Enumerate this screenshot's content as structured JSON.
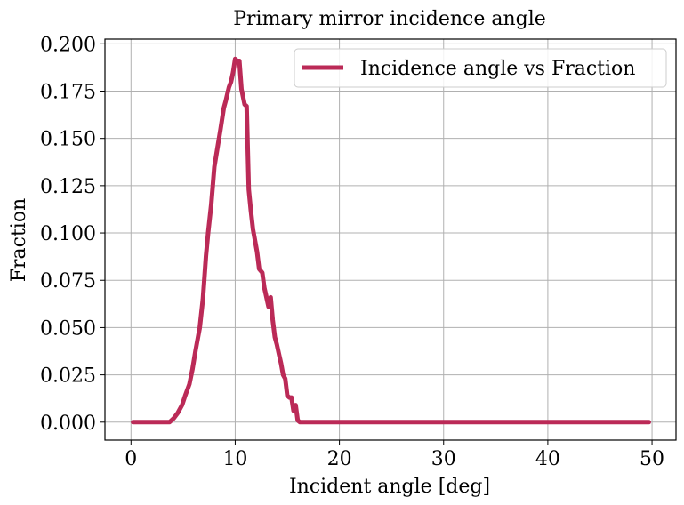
{
  "chart_data": {
    "type": "line",
    "title": "Primary mirror incidence angle",
    "xlabel": "Incident angle [deg]",
    "ylabel": "Fraction",
    "xlim": [
      -2.5,
      52.3
    ],
    "ylim": [
      -0.0095,
      0.2025
    ],
    "xticks": [
      0,
      10,
      20,
      30,
      40,
      50
    ],
    "xtick_labels": [
      "0",
      "10",
      "20",
      "30",
      "40",
      "50"
    ],
    "yticks": [
      0.0,
      0.025,
      0.05,
      0.075,
      0.1,
      0.125,
      0.15,
      0.175,
      0.2
    ],
    "ytick_labels": [
      "0.000",
      "0.025",
      "0.050",
      "0.075",
      "0.100",
      "0.125",
      "0.150",
      "0.175",
      "0.200"
    ],
    "grid": true,
    "legend_position": "top-right",
    "series": [
      {
        "name": "Incidence angle vs Fraction",
        "color": "#bb2a57",
        "x": [
          0.2,
          3.7,
          4.1,
          4.5,
          4.9,
          5.2,
          5.6,
          5.9,
          6.2,
          6.6,
          6.9,
          7.2,
          7.4,
          7.7,
          8.0,
          8.3,
          8.6,
          8.9,
          9.1,
          9.4,
          9.6,
          9.8,
          10.0,
          10.2,
          10.4,
          10.6,
          10.9,
          11.1,
          11.3,
          11.5,
          11.7,
          11.9,
          12.1,
          12.3,
          12.6,
          12.8,
          13.0,
          13.2,
          13.4,
          13.6,
          13.8,
          14.0,
          14.2,
          14.4,
          14.6,
          14.8,
          15.0,
          15.2,
          15.4,
          15.6,
          15.8,
          16.0,
          16.2,
          16.4,
          20.0,
          30.0,
          40.0,
          49.7
        ],
        "y": [
          0.0,
          0.0,
          0.002,
          0.005,
          0.009,
          0.014,
          0.02,
          0.028,
          0.038,
          0.05,
          0.065,
          0.088,
          0.1,
          0.115,
          0.135,
          0.145,
          0.155,
          0.166,
          0.17,
          0.177,
          0.18,
          0.185,
          0.192,
          0.191,
          0.191,
          0.176,
          0.168,
          0.167,
          0.123,
          0.112,
          0.102,
          0.096,
          0.09,
          0.081,
          0.079,
          0.071,
          0.066,
          0.061,
          0.066,
          0.054,
          0.045,
          0.041,
          0.036,
          0.031,
          0.025,
          0.023,
          0.014,
          0.013,
          0.013,
          0.006,
          0.009,
          0.001,
          0.0,
          0.0,
          0.0,
          0.0,
          0.0,
          0.0
        ]
      }
    ]
  }
}
